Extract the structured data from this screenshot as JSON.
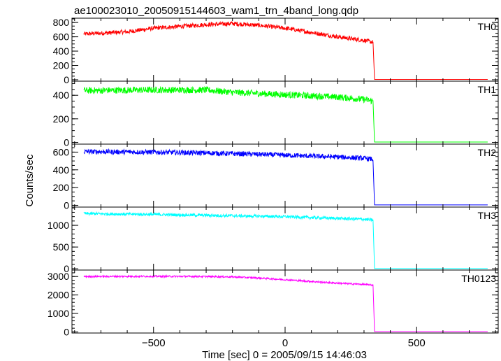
{
  "chart_data": {
    "type": "line",
    "title": "ae100023010_20050915144603_wam1_trn_4band_long.qdp",
    "xlabel": "Time [sec] 0 = 2005/09/15 14:46:03",
    "ylabel": "Counts/sec",
    "xlim": [
      -810,
      810
    ],
    "xticks": [
      -500,
      0,
      500
    ],
    "xtick_labels": [
      "−500",
      "0",
      "500"
    ],
    "data_end_time": 770,
    "drop_time": 340,
    "panels": [
      {
        "name": "TH0",
        "color": "#ff0000",
        "ylim": [
          -20,
          860
        ],
        "yticks": [
          0,
          200,
          400,
          600,
          800
        ],
        "yminor_step": 50,
        "noise": 30,
        "x": [
          -765,
          -700,
          -600,
          -500,
          -400,
          -300,
          -200,
          -100,
          0,
          100,
          200,
          300,
          335
        ],
        "y": [
          640,
          650,
          670,
          720,
          745,
          770,
          785,
          760,
          720,
          660,
          600,
          550,
          525
        ],
        "tail_level": 5
      },
      {
        "name": "TH1",
        "color": "#00ff00",
        "ylim": [
          -15,
          520
        ],
        "yticks": [
          0,
          200,
          400
        ],
        "yminor_step": 50,
        "noise": 28,
        "x": [
          -765,
          -500,
          -300,
          -200,
          -100,
          0,
          100,
          200,
          300,
          335
        ],
        "y": [
          440,
          445,
          445,
          425,
          415,
          405,
          395,
          385,
          365,
          350
        ],
        "tail_level": 3
      },
      {
        "name": "TH2",
        "color": "#0000ff",
        "ylim": [
          -20,
          690
        ],
        "yticks": [
          0,
          200,
          400,
          600
        ],
        "yminor_step": 50,
        "noise": 28,
        "x": [
          -765,
          -500,
          -300,
          -100,
          0,
          100,
          200,
          300,
          335
        ],
        "y": [
          605,
          600,
          590,
          575,
          565,
          555,
          545,
          530,
          520
        ],
        "tail_level": 5
      },
      {
        "name": "TH3",
        "color": "#00ffff",
        "ylim": [
          -30,
          1420
        ],
        "yticks": [
          0,
          500,
          1000
        ],
        "yminor_step": 100,
        "noise": 35,
        "x": [
          -765,
          -500,
          -300,
          -100,
          0,
          100,
          200,
          300,
          335
        ],
        "y": [
          1270,
          1250,
          1230,
          1210,
          1200,
          1180,
          1160,
          1140,
          1120
        ],
        "tail_level": 5
      },
      {
        "name": "TH0123",
        "color": "#ff00ff",
        "ylim": [
          -60,
          3350
        ],
        "yticks": [
          0,
          1000,
          2000,
          3000
        ],
        "yminor_step": 200,
        "noise": 45,
        "x": [
          -765,
          -500,
          -300,
          -200,
          -100,
          0,
          100,
          200,
          300,
          335
        ],
        "y": [
          3000,
          3010,
          3000,
          2980,
          2920,
          2830,
          2730,
          2640,
          2570,
          2540
        ],
        "tail_level": 15
      }
    ]
  }
}
